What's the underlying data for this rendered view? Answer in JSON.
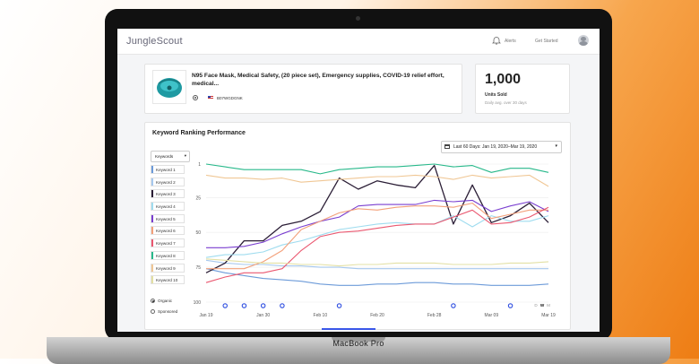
{
  "app": {
    "logo": "JungleScout",
    "alerts_label": "Alerts",
    "get_started_label": "Get Started"
  },
  "product": {
    "title": "N95 Face Mask, Medical Safety, (20 piece set), Emergency supplies, COVID-19 relief effort, medical...",
    "asin": "B07WGDGNK"
  },
  "units": {
    "value": "1,000",
    "label": "Units Sold",
    "sublabel": "Daily avg. over 30 days"
  },
  "performance": {
    "title": "Keyword Ranking Performance",
    "date_range": "Last 60 Days: Jan 19, 2020–Mar 19, 2020",
    "keywords_dropdown": "Keywords",
    "keywords": [
      {
        "label": "Keyword 1",
        "color": "#6d9bd9"
      },
      {
        "label": "Keyword 2",
        "color": "#a6c8ee"
      },
      {
        "label": "Keyword 3",
        "color": "#2b1e36"
      },
      {
        "label": "Keyword 4",
        "color": "#9fdcef"
      },
      {
        "label": "Keyword 5",
        "color": "#7a3fd0"
      },
      {
        "label": "Keyword 6",
        "color": "#f3a07a"
      },
      {
        "label": "Keyword 7",
        "color": "#ea5870"
      },
      {
        "label": "Keyword 8",
        "color": "#27b88a"
      },
      {
        "label": "Keyword 9",
        "color": "#f0c795"
      },
      {
        "label": "Keyword 10",
        "color": "#e3e0a4"
      }
    ],
    "type_options": [
      {
        "label": "Organic",
        "selected": true
      },
      {
        "label": "Sponsored",
        "selected": false
      }
    ]
  },
  "chart_data": {
    "type": "line",
    "y_ticks": [
      "1",
      "25",
      "50",
      "75",
      "100"
    ],
    "x_ticks": [
      "Jan 19",
      "Jan 30",
      "Feb 10",
      "Feb 20",
      "Feb 28",
      "Mar 09",
      "Mar 19"
    ],
    "ylim": [
      1,
      100
    ],
    "y_inverted": true,
    "granularity_toggle": [
      "D",
      "W",
      "M"
    ],
    "granularity_selected": "W",
    "x_count": 19,
    "series": [
      {
        "name": "Keyword 1",
        "values": [
          76,
          79,
          81,
          83,
          84,
          85,
          87,
          88,
          88,
          87,
          87,
          86,
          86,
          87,
          87,
          88,
          88,
          88,
          87
        ]
      },
      {
        "name": "Keyword 2",
        "values": [
          70,
          72,
          73,
          73,
          74,
          74,
          75,
          75,
          76,
          76,
          76,
          76,
          76,
          76,
          76,
          76,
          76,
          76,
          76
        ]
      },
      {
        "name": "Keyword 3",
        "values": [
          79,
          72,
          56,
          56,
          45,
          42,
          35,
          11,
          19,
          13,
          16,
          18,
          2,
          44,
          16,
          43,
          38,
          29,
          43
        ]
      },
      {
        "name": "Keyword 4",
        "values": [
          68,
          66,
          66,
          64,
          59,
          56,
          52,
          48,
          46,
          44,
          43,
          44,
          44,
          38,
          46,
          38,
          42,
          42,
          38
        ]
      },
      {
        "name": "Keyword 5",
        "values": [
          61,
          61,
          60,
          57,
          51,
          46,
          42,
          39,
          31,
          30,
          30,
          30,
          27,
          28,
          27,
          35,
          31,
          28,
          35
        ]
      },
      {
        "name": "Keyword 6",
        "values": [
          76,
          76,
          76,
          71,
          63,
          48,
          42,
          36,
          33,
          34,
          32,
          31,
          31,
          32,
          29,
          40,
          37,
          34,
          34
        ]
      },
      {
        "name": "Keyword 7",
        "values": [
          86,
          82,
          79,
          79,
          76,
          63,
          53,
          50,
          49,
          47,
          45,
          44,
          44,
          39,
          34,
          44,
          43,
          39,
          32
        ]
      },
      {
        "name": "Keyword 8",
        "values": [
          1,
          3,
          5,
          5,
          5,
          5,
          8,
          5,
          4,
          3,
          3,
          2,
          1,
          3,
          2,
          7,
          4,
          4,
          7
        ]
      },
      {
        "name": "Keyword 9",
        "values": [
          9,
          11,
          11,
          12,
          11,
          14,
          13,
          12,
          11,
          10,
          10,
          9,
          10,
          12,
          9,
          11,
          10,
          9,
          17
        ]
      },
      {
        "name": "Keyword 10",
        "values": [
          69,
          70,
          71,
          72,
          72,
          73,
          73,
          74,
          73,
          73,
          72,
          72,
          72,
          73,
          73,
          73,
          72,
          72,
          71
        ]
      }
    ],
    "markers": [
      1,
      2,
      3,
      4,
      7,
      13,
      16
    ]
  }
}
